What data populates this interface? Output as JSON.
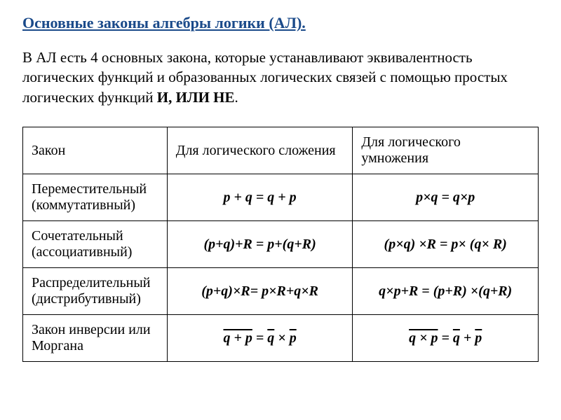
{
  "title": "Основные законы алгебры логики (АЛ).",
  "intro_part1": "В АЛ есть 4 основных закона, которые устанавливают эквивалентность логических функций и образованных логических связей с помощью простых логических функций ",
  "intro_bold": "И, ИЛИ НЕ",
  "intro_part2": ".",
  "table": {
    "header": {
      "col1": "Закон",
      "col2": "Для логического сложения",
      "col3": "Для логического умножения"
    },
    "rows": [
      {
        "law_line1": "Переместительный",
        "law_line2": "(коммутативный)",
        "addition": "p + q = q + p",
        "multiplication": "p×q = q×p"
      },
      {
        "law_line1": "Сочетательный",
        "law_line2": "(ассоциативный)",
        "addition": "(p+q)+R = p+(q+R)",
        "multiplication": "(p×q) ×R = p× (q× R)"
      },
      {
        "law_line1": "Распределительный",
        "law_line2": "(дистрибутивный)",
        "addition": "(p+q)×R= p×R+q×R",
        "multiplication": "q×p+R = (p+R) ×(q+R)"
      },
      {
        "law_line1": "Закон инверсии или",
        "law_line2": "Моргана",
        "morgan_add": {
          "left_outer": "q + p",
          "eq": " = ",
          "right_a": "q",
          "right_op": " × ",
          "right_b": "p"
        },
        "morgan_mul": {
          "left_outer": "q × p",
          "eq": " = ",
          "right_a": "q",
          "right_op": " + ",
          "right_b": "p"
        }
      }
    ]
  },
  "styling": {
    "title_color": "#1a4a8a",
    "text_color": "#000000",
    "background_color": "#ffffff",
    "border_color": "#000000",
    "title_fontsize": 22,
    "body_fontsize": 21,
    "table_fontsize": 20,
    "font_family": "Times New Roman",
    "col_widths_percent": [
      28,
      36,
      36
    ]
  }
}
